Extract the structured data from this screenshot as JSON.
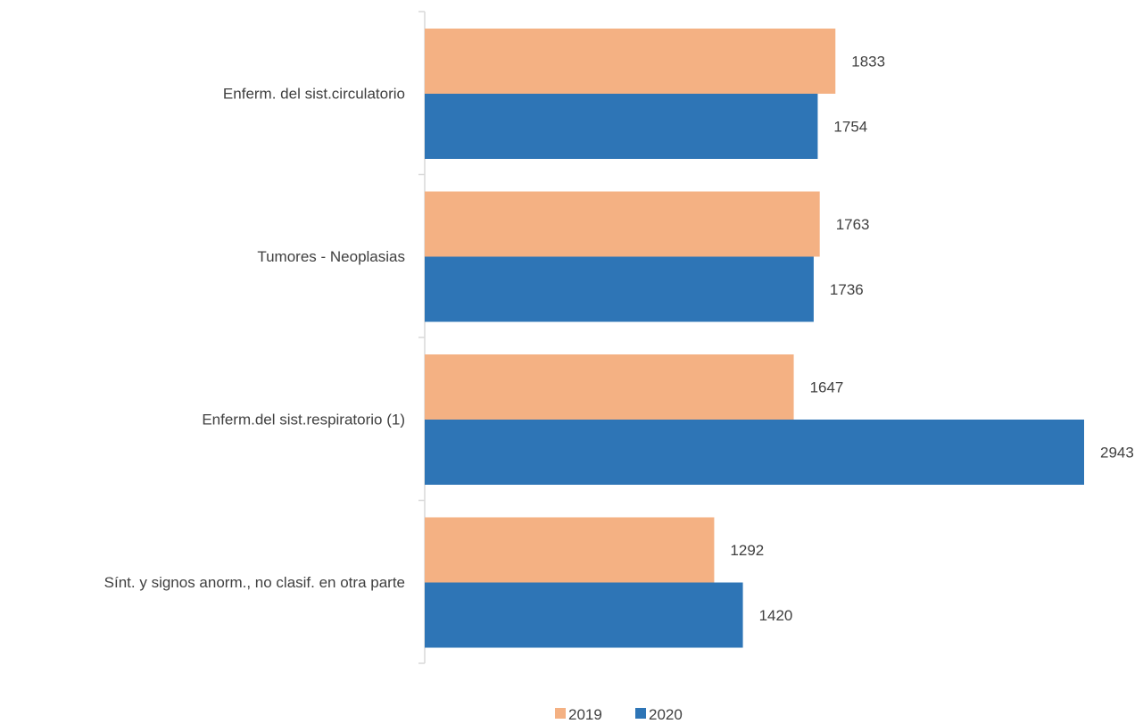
{
  "chart_data": {
    "type": "bar",
    "orientation": "horizontal",
    "categories": [
      "Enferm. del sist.circulatorio",
      "Tumores - Neoplasias",
      "Enferm.del sist.respiratorio (1)",
      "Sínt. y signos anorm., no clasif. en otra parte"
    ],
    "series": [
      {
        "name": "2019",
        "color": "#f4b183",
        "values": [
          1833,
          1763,
          1647,
          1292
        ]
      },
      {
        "name": "2020",
        "color": "#2e75b6",
        "values": [
          1754,
          1736,
          2943,
          1420
        ]
      }
    ],
    "xlim": [
      0,
      2943
    ],
    "grid": false,
    "legend": "bottom-center",
    "data_labels": true
  }
}
